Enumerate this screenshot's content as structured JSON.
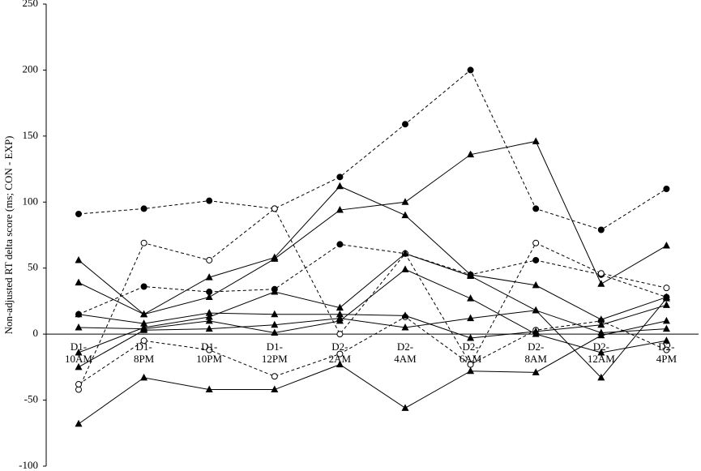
{
  "chart_data": {
    "type": "line",
    "y_label": "Non-adjusted RT delta score (ms; CON - EXP)",
    "categories": [
      "D1- 10AM",
      "D1- 8PM",
      "D1- 10PM",
      "D1- 12PM",
      "D2- 2AM",
      "D2- 4AM",
      "D2- 6AM",
      "D2- 8AM",
      "D2- 12AM",
      "D2- 4PM"
    ],
    "ylim": [
      -100,
      250
    ],
    "yticks": [
      -100,
      -50,
      0,
      50,
      100,
      150,
      200,
      250
    ],
    "series": [
      {
        "color": "#000000",
        "dashed": true,
        "marker": "filled-circle",
        "values": [
          91,
          95,
          101,
          95,
          119,
          159,
          200,
          95,
          79,
          110
        ]
      },
      {
        "color": "#000000",
        "dashed": true,
        "marker": "filled-circle",
        "values": [
          15,
          36,
          32,
          34,
          68,
          61,
          45,
          56,
          45,
          28
        ]
      },
      {
        "color": "#000000",
        "dashed": true,
        "marker": "open-circle",
        "values": [
          -42,
          69,
          56,
          95,
          0,
          61,
          -23,
          69,
          46,
          35
        ]
      },
      {
        "color": "#000000",
        "dashed": true,
        "marker": "open-circle",
        "values": [
          -38,
          -5,
          -12,
          -32,
          -15,
          13,
          -23,
          3,
          10,
          -12
        ]
      },
      {
        "color": "#000000",
        "dashed": false,
        "marker": "triangle",
        "values": [
          56,
          15,
          43,
          58,
          112,
          90,
          45,
          37,
          11,
          28
        ]
      },
      {
        "color": "#000000",
        "dashed": false,
        "marker": "triangle",
        "values": [
          39,
          15,
          28,
          57,
          94,
          100,
          136,
          146,
          38,
          67
        ]
      },
      {
        "color": "#000000",
        "dashed": false,
        "marker": "triangle",
        "values": [
          15,
          8,
          16,
          15,
          15,
          14,
          -3,
          2,
          7,
          22
        ]
      },
      {
        "color": "#000000",
        "dashed": false,
        "marker": "triangle",
        "values": [
          5,
          4,
          10,
          1,
          10,
          49,
          27,
          0,
          -14,
          -5
        ]
      },
      {
        "color": "#000000",
        "dashed": false,
        "marker": "triangle",
        "values": [
          -25,
          3,
          4,
          7,
          12,
          5,
          12,
          18,
          1,
          4
        ]
      },
      {
        "color": "#000000",
        "dashed": false,
        "marker": "triangle",
        "values": [
          -68,
          -33,
          -42,
          -42,
          -23,
          -56,
          -28,
          -29,
          -1,
          10
        ]
      },
      {
        "color": "#000000",
        "dashed": false,
        "marker": "triangle",
        "values": [
          -14,
          5,
          13,
          32,
          20,
          61,
          44,
          18,
          -33,
          27
        ]
      }
    ]
  }
}
